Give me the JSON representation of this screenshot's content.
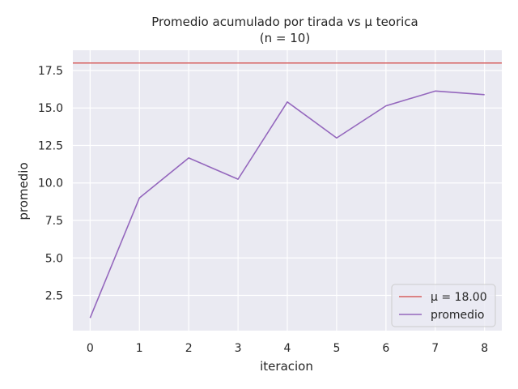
{
  "chart_data": {
    "type": "line",
    "title": "Promedio acumulado por tirada vs μ teorica",
    "subtitle": "(n = 10)",
    "xlabel": "iteracion",
    "ylabel": "promedio",
    "x": [
      0,
      1,
      2,
      3,
      4,
      5,
      6,
      7,
      8
    ],
    "x_ticks": [
      "0",
      "1",
      "2",
      "3",
      "4",
      "5",
      "6",
      "7",
      "8"
    ],
    "y_ticks": [
      "2.5",
      "5.0",
      "7.5",
      "10.0",
      "12.5",
      "15.0",
      "17.5"
    ],
    "xlim": [
      -0.35,
      8.35
    ],
    "ylim": [
      0.15,
      18.85
    ],
    "grid": true,
    "legend_position": "lower-right",
    "series": [
      {
        "name": "promedio",
        "color": "#9467bd",
        "values": [
          1.0,
          9.0,
          11.67,
          10.25,
          15.4,
          13.0,
          15.14,
          16.13,
          15.89
        ]
      }
    ],
    "reference_lines": [
      {
        "name": "μ = 18.00",
        "orientation": "horizontal",
        "value": 18.0,
        "color": "#d65f5f"
      }
    ],
    "legend": [
      "μ = 18.00",
      "promedio"
    ]
  }
}
